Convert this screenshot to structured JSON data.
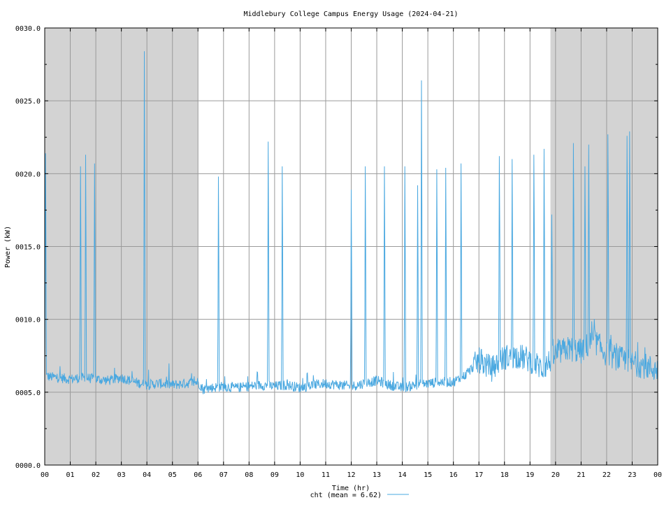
{
  "chart_data": {
    "type": "line",
    "title": "Middlebury College Campus Energy Usage (2024-04-21)",
    "xlabel": "Time (hr)",
    "ylabel": "Power (kW)",
    "xlim": [
      0,
      24
    ],
    "ylim": [
      0,
      30
    ],
    "x_tick_labels": [
      "00",
      "01",
      "02",
      "03",
      "04",
      "05",
      "06",
      "07",
      "08",
      "09",
      "10",
      "11",
      "12",
      "13",
      "14",
      "15",
      "16",
      "17",
      "18",
      "19",
      "20",
      "21",
      "22",
      "23",
      "00"
    ],
    "y_ticks": [
      0,
      5,
      10,
      15,
      20,
      25,
      30
    ],
    "y_tick_labels": [
      "0000.0",
      "0005.0",
      "0010.0",
      "0015.0",
      "0020.0",
      "0025.0",
      "0030.0"
    ],
    "grid": true,
    "shaded_periods": [
      [
        0,
        6
      ],
      [
        19.8,
        24
      ]
    ],
    "shade_color": "#d3d3d3",
    "legend": {
      "position": "bottom",
      "label": "cht (mean = 6.62)"
    },
    "series": [
      {
        "name": "cht (mean = 6.62)",
        "color": "#4aa8e0",
        "baseline": [
          [
            0.0,
            6.1
          ],
          [
            0.5,
            6.0
          ],
          [
            1.0,
            5.9
          ],
          [
            1.5,
            6.0
          ],
          [
            2.0,
            5.9
          ],
          [
            2.5,
            5.8
          ],
          [
            3.0,
            6.0
          ],
          [
            3.5,
            5.7
          ],
          [
            4.0,
            5.5
          ],
          [
            4.5,
            5.6
          ],
          [
            5.0,
            5.5
          ],
          [
            5.5,
            5.6
          ],
          [
            6.0,
            5.7
          ],
          [
            6.2,
            5.2
          ],
          [
            6.5,
            5.3
          ],
          [
            7.0,
            5.4
          ],
          [
            7.5,
            5.3
          ],
          [
            8.0,
            5.4
          ],
          [
            8.5,
            5.5
          ],
          [
            9.0,
            5.4
          ],
          [
            9.5,
            5.5
          ],
          [
            10.0,
            5.3
          ],
          [
            10.5,
            5.5
          ],
          [
            11.0,
            5.6
          ],
          [
            11.5,
            5.5
          ],
          [
            12.0,
            5.4
          ],
          [
            12.5,
            5.6
          ],
          [
            13.0,
            5.8
          ],
          [
            13.5,
            5.5
          ],
          [
            14.0,
            5.3
          ],
          [
            14.5,
            5.5
          ],
          [
            15.0,
            5.6
          ],
          [
            15.5,
            5.7
          ],
          [
            16.0,
            5.7
          ],
          [
            16.5,
            6.2
          ],
          [
            17.0,
            7.2
          ],
          [
            17.5,
            6.6
          ],
          [
            18.0,
            7.4
          ],
          [
            18.5,
            7.5
          ],
          [
            19.0,
            7.2
          ],
          [
            19.5,
            6.6
          ],
          [
            20.0,
            7.6
          ],
          [
            20.5,
            8.0
          ],
          [
            21.0,
            7.8
          ],
          [
            21.5,
            8.6
          ],
          [
            22.0,
            7.6
          ],
          [
            22.5,
            7.3
          ],
          [
            23.0,
            7.0
          ],
          [
            23.5,
            6.8
          ],
          [
            24.0,
            6.5
          ]
        ],
        "spikes": [
          [
            0.03,
            21.4
          ],
          [
            1.4,
            20.5
          ],
          [
            1.6,
            21.3
          ],
          [
            1.95,
            20.7
          ],
          [
            3.9,
            28.4
          ],
          [
            6.8,
            19.8
          ],
          [
            8.75,
            22.2
          ],
          [
            9.3,
            20.5
          ],
          [
            12.0,
            18.9
          ],
          [
            12.55,
            20.5
          ],
          [
            13.3,
            20.5
          ],
          [
            14.1,
            20.5
          ],
          [
            14.6,
            19.2
          ],
          [
            14.75,
            26.4
          ],
          [
            15.35,
            20.3
          ],
          [
            15.7,
            20.4
          ],
          [
            16.3,
            20.7
          ],
          [
            17.8,
            21.2
          ],
          [
            18.3,
            21.0
          ],
          [
            19.15,
            21.3
          ],
          [
            19.55,
            21.7
          ],
          [
            19.85,
            17.2
          ],
          [
            20.7,
            22.1
          ],
          [
            21.15,
            20.5
          ],
          [
            21.3,
            22.0
          ],
          [
            22.05,
            22.7
          ],
          [
            22.8,
            22.6
          ],
          [
            22.9,
            22.9
          ]
        ]
      }
    ]
  }
}
